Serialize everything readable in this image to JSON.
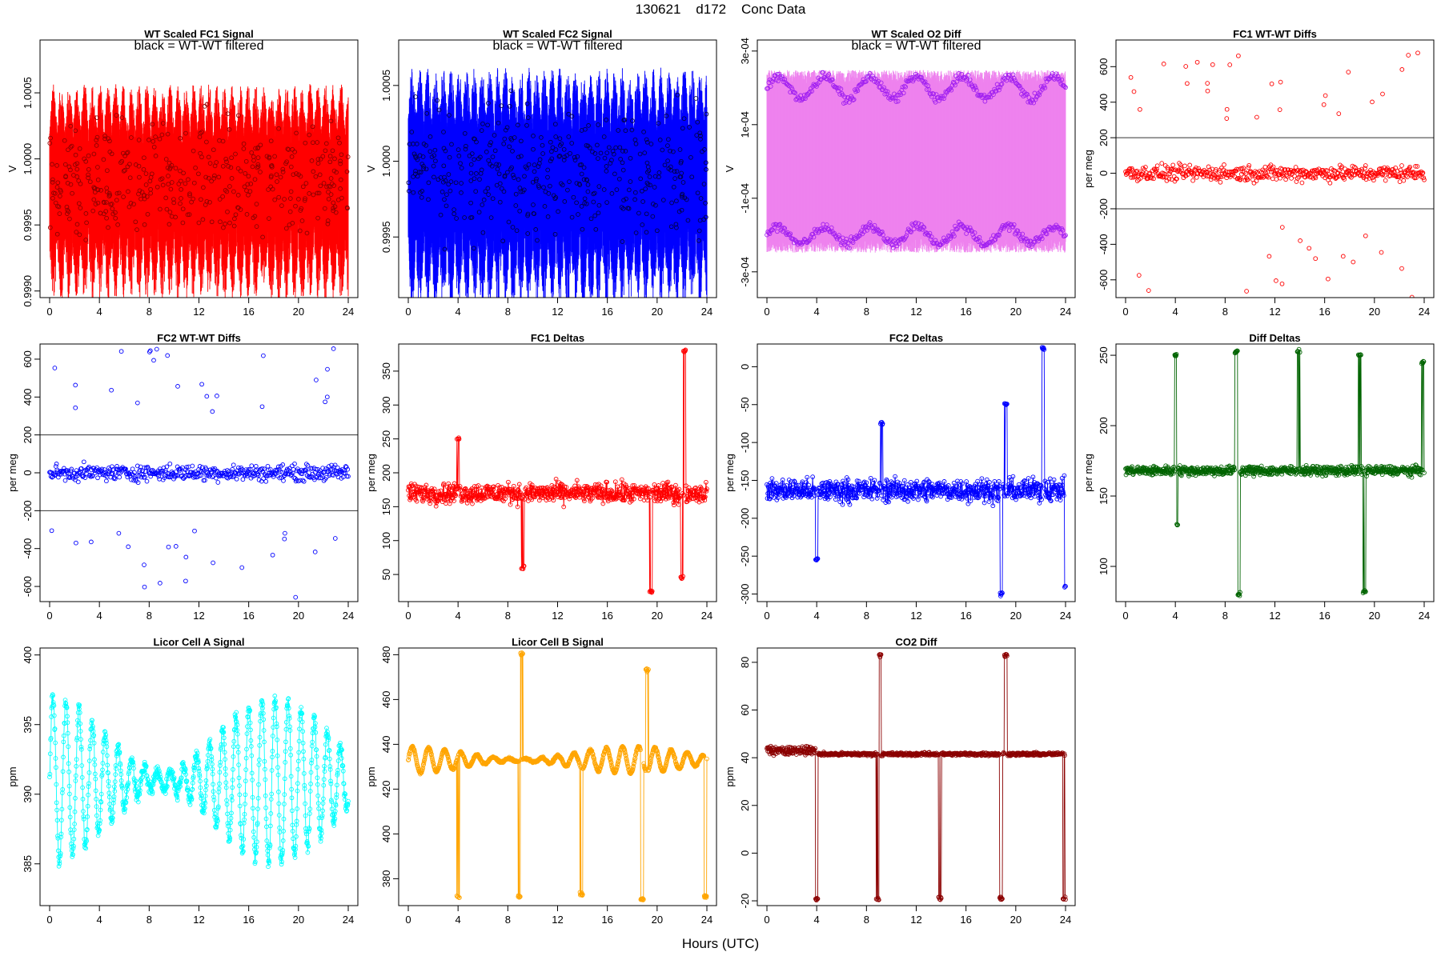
{
  "figure": {
    "title": "130621    d172    Conc Data",
    "xlabel": "Hours (UTC)"
  },
  "chart_data": [
    {
      "id": "fc1sig",
      "title": "WT Scaled FC1 Signal",
      "annotation": "black = WT-WT filtered",
      "ylabel": "V",
      "type": "line",
      "xlim": [
        0,
        24
      ],
      "ylim": [
        0.99895,
        1.0009
      ],
      "yticks": [
        0.999,
        0.9995,
        1.0,
        1.0005
      ],
      "yticklabels": [
        "0.9990",
        "0.9995",
        "1.0000",
        "1.0005"
      ],
      "xticks": [
        0,
        4,
        8,
        12,
        16,
        20,
        24
      ],
      "color": "#ff0000",
      "marker_color": "#8a0000",
      "series": [
        {
          "name": "",
          "style": "dense-oscillation",
          "center": 0.99985,
          "amplitude": 0.00072,
          "period_h": 1.25,
          "note": "strong oscillation across 0-24 h"
        }
      ]
    },
    {
      "id": "fc2sig",
      "title": "WT Scaled FC2 Signal",
      "annotation": "black = WT-WT filtered",
      "ylabel": "V",
      "type": "line",
      "xlim": [
        0,
        24
      ],
      "ylim": [
        0.9991,
        1.0008
      ],
      "yticks": [
        0.9995,
        1.0,
        1.0005
      ],
      "yticklabels": [
        "0.9995",
        "1.0000",
        "1.0005"
      ],
      "xticks": [
        0,
        4,
        8,
        12,
        16,
        20,
        24
      ],
      "color": "#0000ff",
      "marker_color": "#000044",
      "series": [
        {
          "name": "",
          "style": "dense-oscillation",
          "center": 0.99992,
          "amplitude": 0.0007,
          "period_h": 1.25
        }
      ]
    },
    {
      "id": "o2diff",
      "title": "WT Scaled O2 Diff",
      "annotation": "black = WT-WT filtered",
      "ylabel": "V",
      "type": "line",
      "xlim": [
        0,
        24
      ],
      "ylim": [
        -0.00037,
        0.00033
      ],
      "yticks": [
        -0.0003,
        -0.0001,
        0.0001,
        0.0003
      ],
      "yticklabels": [
        "-3e-04",
        "-1e-04",
        "1e-04",
        "3e-04"
      ],
      "xticks": [
        0,
        4,
        8,
        12,
        16,
        20,
        24
      ],
      "color": "#ee82ee",
      "marker_color": "#a020f0",
      "series": [
        {
          "name": "",
          "style": "two-band",
          "upper_center": 0.0002,
          "lower_center": -0.0002,
          "band_noise": 3e-05
        }
      ]
    },
    {
      "id": "fc1wt",
      "title": "FC1 WT-WT Diffs",
      "ylabel": "per meg",
      "type": "scatter",
      "xlim": [
        0,
        24
      ],
      "ylim": [
        -700,
        750
      ],
      "yticks": [
        -600,
        -400,
        -200,
        0,
        200,
        400,
        600
      ],
      "yticklabels": [
        "-600",
        "-400",
        "-200",
        "0",
        "200",
        "400",
        "600"
      ],
      "xticks": [
        0,
        4,
        8,
        12,
        16,
        20,
        24
      ],
      "color": "#ff0000",
      "hlines": [
        200,
        -200
      ],
      "series": [
        {
          "name": "",
          "style": "scatter-noise",
          "center": 0,
          "spread": 65,
          "outlier_range": [
            300,
            700
          ]
        }
      ]
    },
    {
      "id": "fc2wt",
      "title": "FC2 WT-WT Diffs",
      "ylabel": "per meg",
      "type": "scatter",
      "xlim": [
        0,
        24
      ],
      "ylim": [
        -680,
        680
      ],
      "yticks": [
        -600,
        -400,
        -200,
        0,
        200,
        400,
        600
      ],
      "yticklabels": [
        "-600",
        "-400",
        "-200",
        "0",
        "200",
        "400",
        "600"
      ],
      "xticks": [
        0,
        4,
        8,
        12,
        16,
        20,
        24
      ],
      "color": "#0000ff",
      "hlines": [
        200,
        -200
      ],
      "series": [
        {
          "name": "",
          "style": "scatter-noise",
          "center": 0,
          "spread": 60,
          "outlier_range": [
            300,
            660
          ]
        }
      ]
    },
    {
      "id": "fc1d",
      "title": "FC1 Deltas",
      "ylabel": "per meg",
      "type": "line",
      "xlim": [
        0,
        24
      ],
      "ylim": [
        10,
        390
      ],
      "yticks": [
        50,
        100,
        150,
        200,
        250,
        300,
        350
      ],
      "yticklabels": [
        "50",
        "100",
        "150",
        "200",
        "250",
        "300",
        "350"
      ],
      "xticks": [
        0,
        4,
        8,
        12,
        16,
        20,
        24
      ],
      "color": "#ff0000",
      "series": [
        {
          "name": "",
          "style": "noisy-line",
          "center": 170,
          "spread": 22,
          "spikes": [
            [
              4,
              250
            ],
            [
              9.2,
              60
            ],
            [
              19.5,
              25
            ],
            [
              22.2,
              380
            ],
            [
              22,
              45
            ]
          ]
        }
      ]
    },
    {
      "id": "fc2d",
      "title": "FC2 Deltas",
      "ylabel": "per meg",
      "type": "line",
      "xlim": [
        0,
        24
      ],
      "ylim": [
        -310,
        30
      ],
      "yticks": [
        -300,
        -250,
        -200,
        -150,
        -100,
        -50,
        0
      ],
      "yticklabels": [
        "-300",
        "-250",
        "-200",
        "-150",
        "-100",
        "-50",
        "0"
      ],
      "xticks": [
        0,
        4,
        8,
        12,
        16,
        20,
        24
      ],
      "color": "#0000ff",
      "series": [
        {
          "name": "",
          "style": "noisy-line",
          "center": -163,
          "spread": 22,
          "spikes": [
            [
              4,
              -255
            ],
            [
              9.2,
              -75
            ],
            [
              18.8,
              -300
            ],
            [
              19.2,
              -50
            ],
            [
              22.2,
              25
            ],
            [
              24,
              -290
            ]
          ]
        }
      ]
    },
    {
      "id": "diffd",
      "title": "Diff Deltas",
      "ylabel": "per meg",
      "type": "line",
      "xlim": [
        0,
        24
      ],
      "ylim": [
        75,
        258
      ],
      "yticks": [
        100,
        150,
        200,
        250
      ],
      "yticklabels": [
        "100",
        "150",
        "200",
        "250"
      ],
      "xticks": [
        0,
        4,
        8,
        12,
        16,
        20,
        24
      ],
      "color": "#006400",
      "series": [
        {
          "name": "",
          "style": "noisy-line",
          "center": 168,
          "spread": 5,
          "spikes": [
            [
              4,
              250
            ],
            [
              4.1,
              130
            ],
            [
              8.9,
              252
            ],
            [
              9.1,
              80
            ],
            [
              13.9,
              253
            ],
            [
              18.8,
              250
            ],
            [
              19.2,
              82
            ],
            [
              23.9,
              245
            ]
          ]
        }
      ]
    },
    {
      "id": "licA",
      "title": "Licor Cell A Signal",
      "ylabel": "ppm",
      "type": "line",
      "xlim": [
        0,
        24
      ],
      "ylim": [
        382,
        400.5
      ],
      "yticks": [
        385,
        390,
        395,
        400
      ],
      "yticklabels": [
        "385",
        "390",
        "395",
        "400"
      ],
      "xticks": [
        0,
        4,
        8,
        12,
        16,
        20,
        24
      ],
      "color": "#00ffff",
      "series": [
        {
          "name": "",
          "style": "oscillation",
          "center": 391,
          "amplitude": 6,
          "period_h": 1.05
        }
      ]
    },
    {
      "id": "licB",
      "title": "Licor Cell B Signal",
      "ylabel": "ppm",
      "type": "line",
      "xlim": [
        0,
        24
      ],
      "ylim": [
        368,
        483
      ],
      "yticks": [
        380,
        400,
        420,
        440,
        460,
        480
      ],
      "yticklabels": [
        "380",
        "400",
        "420",
        "440",
        "460",
        "480"
      ],
      "xticks": [
        0,
        4,
        8,
        12,
        16,
        20,
        24
      ],
      "color": "#ffa500",
      "series": [
        {
          "name": "",
          "style": "oscillation",
          "center": 433,
          "amplitude": 6,
          "period_h": 1.3,
          "spikes": [
            [
              4,
              372
            ],
            [
              8.9,
              372
            ],
            [
              9.1,
              480
            ],
            [
              13.9,
              373
            ],
            [
              18.8,
              371
            ],
            [
              19.2,
              473
            ],
            [
              23.9,
              372
            ],
            [
              24,
              440
            ]
          ]
        }
      ]
    },
    {
      "id": "co2",
      "title": "CO2 Diff",
      "ylabel": "ppm",
      "type": "line",
      "xlim": [
        0,
        24
      ],
      "ylim": [
        -22,
        86
      ],
      "yticks": [
        -20,
        0,
        20,
        40,
        60,
        80
      ],
      "yticklabels": [
        "-20",
        "0",
        "20",
        "40",
        "60",
        "80"
      ],
      "xticks": [
        0,
        4,
        8,
        12,
        16,
        20,
        24
      ],
      "color": "#8b0000",
      "series": [
        {
          "name": "",
          "style": "flat-line",
          "center": 41.5,
          "spread": 1,
          "spikes": [
            [
              4,
              -19
            ],
            [
              8.9,
              -19
            ],
            [
              9.1,
              83
            ],
            [
              13.9,
              -19
            ],
            [
              18.8,
              -19
            ],
            [
              19.2,
              83
            ],
            [
              23.9,
              -19
            ],
            [
              24,
              48
            ]
          ]
        }
      ]
    }
  ]
}
